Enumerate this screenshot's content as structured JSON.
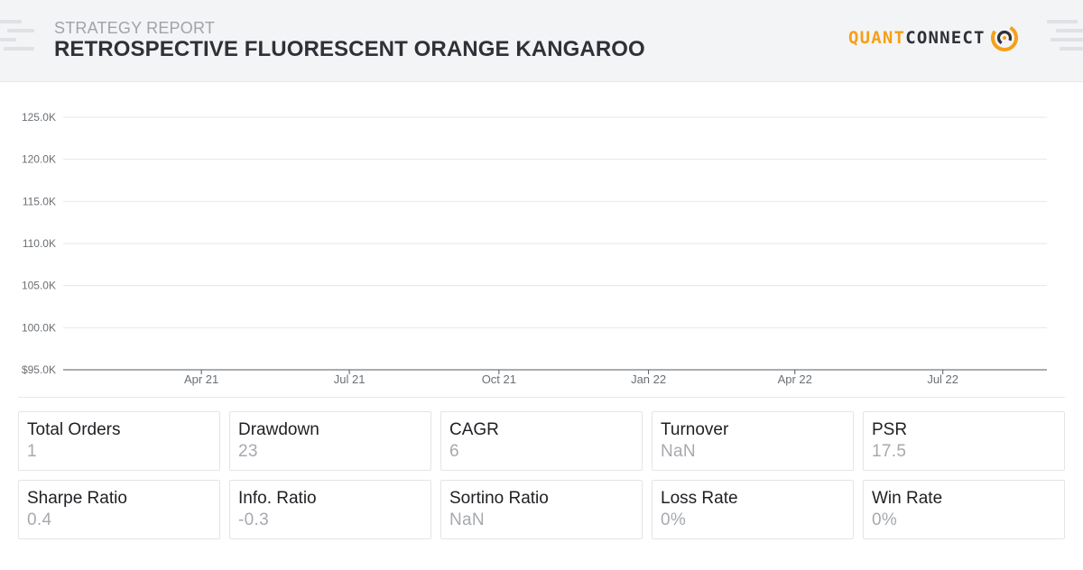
{
  "header": {
    "subtitle": "STRATEGY REPORT",
    "title": "RETROSPECTIVE FLUORESCENT ORANGE KANGAROO",
    "logo": {
      "part1": "QUANT",
      "part2": "CONNECT",
      "icon": "quantconnect-logo-icon",
      "accent": "#f5a019"
    }
  },
  "chart_data": {
    "type": "line",
    "title": "",
    "xlabel": "",
    "ylabel": "",
    "y_ticks": [
      "125.0K",
      "120.0K",
      "115.0K",
      "110.0K",
      "105.0K",
      "100.0K",
      "$95.0K"
    ],
    "y_tick_values": [
      125000,
      120000,
      115000,
      110000,
      105000,
      100000,
      95000
    ],
    "ylim": [
      95000,
      125000
    ],
    "x_ticks": [
      "Apr 21",
      "Jul 21",
      "Oct 21",
      "Jan 22",
      "Apr 22",
      "Jul 22"
    ],
    "x_tick_dates": [
      "2021-04-01",
      "2021-07-01",
      "2021-10-01",
      "2022-01-01",
      "2022-04-01",
      "2022-07-01"
    ],
    "xlim": [
      "2021-01-06",
      "2022-09-03"
    ],
    "grid": true,
    "series": []
  },
  "metrics": [
    {
      "label": "Total Orders",
      "value": "1"
    },
    {
      "label": "Drawdown",
      "value": "23"
    },
    {
      "label": "CAGR",
      "value": "6"
    },
    {
      "label": "Turnover",
      "value": "NaN"
    },
    {
      "label": "PSR",
      "value": "17.5"
    },
    {
      "label": "Sharpe Ratio",
      "value": "0.4"
    },
    {
      "label": "Info. Ratio",
      "value": "-0.3"
    },
    {
      "label": "Sortino Ratio",
      "value": "NaN"
    },
    {
      "label": "Loss Rate",
      "value": "0%"
    },
    {
      "label": "Win Rate",
      "value": "0%"
    }
  ]
}
